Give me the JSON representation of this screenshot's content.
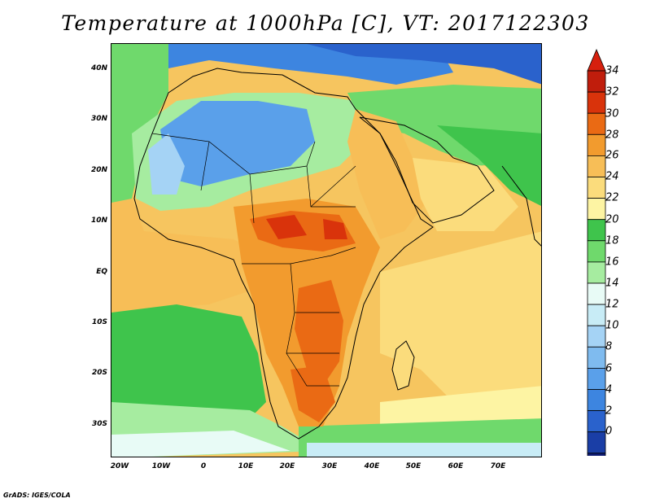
{
  "title": "Temperature at 1000hPa [C], VT: 2017122303",
  "credit": "GrADS: IGES/COLA",
  "map": {
    "projection": "latlon",
    "lon_range": [
      -25,
      80
    ],
    "lat_range": [
      -37,
      46
    ],
    "lat_ticks": [
      {
        "value": 40,
        "label": "40N"
      },
      {
        "value": 30,
        "label": "30N"
      },
      {
        "value": 20,
        "label": "20N"
      },
      {
        "value": 10,
        "label": "10N"
      },
      {
        "value": 0,
        "label": "EQ"
      },
      {
        "value": -10,
        "label": "10S"
      },
      {
        "value": -20,
        "label": "20S"
      },
      {
        "value": -30,
        "label": "30S"
      }
    ],
    "lon_ticks": [
      {
        "value": -20,
        "label": "20W"
      },
      {
        "value": -10,
        "label": "10W"
      },
      {
        "value": 0,
        "label": "0"
      },
      {
        "value": 10,
        "label": "10E"
      },
      {
        "value": 20,
        "label": "20E"
      },
      {
        "value": 30,
        "label": "30E"
      },
      {
        "value": 40,
        "label": "40E"
      },
      {
        "value": 50,
        "label": "50E"
      },
      {
        "value": 60,
        "label": "60E"
      },
      {
        "value": 70,
        "label": "70E"
      }
    ]
  },
  "colorbar": {
    "labels": [
      "34",
      "32",
      "30",
      "28",
      "26",
      "24",
      "22",
      "20",
      "18",
      "16",
      "14",
      "12",
      "10",
      "8",
      "6",
      "4",
      "2",
      "0"
    ],
    "levels": [
      0,
      2,
      4,
      6,
      8,
      10,
      12,
      14,
      16,
      18,
      20,
      22,
      24,
      26,
      28,
      30,
      32,
      34
    ],
    "colors": [
      "#0d1a73",
      "#1a3ea6",
      "#2a62cc",
      "#3d85e0",
      "#5aa0ea",
      "#7fbbef",
      "#a5d3f5",
      "#c8ecf6",
      "#e8fbf6",
      "#a6eca0",
      "#6fd96c",
      "#3fc44c",
      "#fdf4a3",
      "#fbdc7c",
      "#f7be57",
      "#f29b2e",
      "#ea6a14",
      "#d9330b",
      "#c01d0c"
    ],
    "under_color": "#d6d3ff",
    "over_color": "#d6200e"
  }
}
